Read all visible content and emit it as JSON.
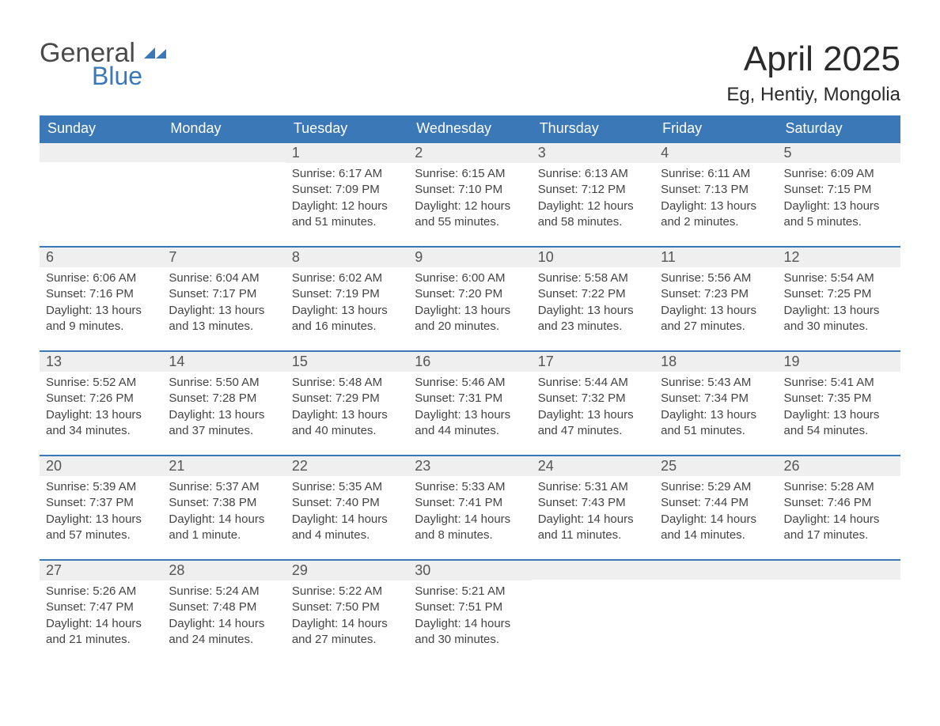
{
  "logo": {
    "general": "General",
    "blue": "Blue",
    "icon_color": "#3b78b8"
  },
  "title": "April 2025",
  "location": "Eg, Hentiy, Mongolia",
  "colors": {
    "header_bg": "#3b78b8",
    "header_text": "#ffffff",
    "daynum_bg": "#efefef",
    "border": "#3b78b8",
    "body_text": "#444444"
  },
  "day_names": [
    "Sunday",
    "Monday",
    "Tuesday",
    "Wednesday",
    "Thursday",
    "Friday",
    "Saturday"
  ],
  "weeks": [
    [
      null,
      null,
      {
        "n": "1",
        "sr": "6:17 AM",
        "ss": "7:09 PM",
        "dl": "12 hours and 51 minutes."
      },
      {
        "n": "2",
        "sr": "6:15 AM",
        "ss": "7:10 PM",
        "dl": "12 hours and 55 minutes."
      },
      {
        "n": "3",
        "sr": "6:13 AM",
        "ss": "7:12 PM",
        "dl": "12 hours and 58 minutes."
      },
      {
        "n": "4",
        "sr": "6:11 AM",
        "ss": "7:13 PM",
        "dl": "13 hours and 2 minutes."
      },
      {
        "n": "5",
        "sr": "6:09 AM",
        "ss": "7:15 PM",
        "dl": "13 hours and 5 minutes."
      }
    ],
    [
      {
        "n": "6",
        "sr": "6:06 AM",
        "ss": "7:16 PM",
        "dl": "13 hours and 9 minutes."
      },
      {
        "n": "7",
        "sr": "6:04 AM",
        "ss": "7:17 PM",
        "dl": "13 hours and 13 minutes."
      },
      {
        "n": "8",
        "sr": "6:02 AM",
        "ss": "7:19 PM",
        "dl": "13 hours and 16 minutes."
      },
      {
        "n": "9",
        "sr": "6:00 AM",
        "ss": "7:20 PM",
        "dl": "13 hours and 20 minutes."
      },
      {
        "n": "10",
        "sr": "5:58 AM",
        "ss": "7:22 PM",
        "dl": "13 hours and 23 minutes."
      },
      {
        "n": "11",
        "sr": "5:56 AM",
        "ss": "7:23 PM",
        "dl": "13 hours and 27 minutes."
      },
      {
        "n": "12",
        "sr": "5:54 AM",
        "ss": "7:25 PM",
        "dl": "13 hours and 30 minutes."
      }
    ],
    [
      {
        "n": "13",
        "sr": "5:52 AM",
        "ss": "7:26 PM",
        "dl": "13 hours and 34 minutes."
      },
      {
        "n": "14",
        "sr": "5:50 AM",
        "ss": "7:28 PM",
        "dl": "13 hours and 37 minutes."
      },
      {
        "n": "15",
        "sr": "5:48 AM",
        "ss": "7:29 PM",
        "dl": "13 hours and 40 minutes."
      },
      {
        "n": "16",
        "sr": "5:46 AM",
        "ss": "7:31 PM",
        "dl": "13 hours and 44 minutes."
      },
      {
        "n": "17",
        "sr": "5:44 AM",
        "ss": "7:32 PM",
        "dl": "13 hours and 47 minutes."
      },
      {
        "n": "18",
        "sr": "5:43 AM",
        "ss": "7:34 PM",
        "dl": "13 hours and 51 minutes."
      },
      {
        "n": "19",
        "sr": "5:41 AM",
        "ss": "7:35 PM",
        "dl": "13 hours and 54 minutes."
      }
    ],
    [
      {
        "n": "20",
        "sr": "5:39 AM",
        "ss": "7:37 PM",
        "dl": "13 hours and 57 minutes."
      },
      {
        "n": "21",
        "sr": "5:37 AM",
        "ss": "7:38 PM",
        "dl": "14 hours and 1 minute."
      },
      {
        "n": "22",
        "sr": "5:35 AM",
        "ss": "7:40 PM",
        "dl": "14 hours and 4 minutes."
      },
      {
        "n": "23",
        "sr": "5:33 AM",
        "ss": "7:41 PM",
        "dl": "14 hours and 8 minutes."
      },
      {
        "n": "24",
        "sr": "5:31 AM",
        "ss": "7:43 PM",
        "dl": "14 hours and 11 minutes."
      },
      {
        "n": "25",
        "sr": "5:29 AM",
        "ss": "7:44 PM",
        "dl": "14 hours and 14 minutes."
      },
      {
        "n": "26",
        "sr": "5:28 AM",
        "ss": "7:46 PM",
        "dl": "14 hours and 17 minutes."
      }
    ],
    [
      {
        "n": "27",
        "sr": "5:26 AM",
        "ss": "7:47 PM",
        "dl": "14 hours and 21 minutes."
      },
      {
        "n": "28",
        "sr": "5:24 AM",
        "ss": "7:48 PM",
        "dl": "14 hours and 24 minutes."
      },
      {
        "n": "29",
        "sr": "5:22 AM",
        "ss": "7:50 PM",
        "dl": "14 hours and 27 minutes."
      },
      {
        "n": "30",
        "sr": "5:21 AM",
        "ss": "7:51 PM",
        "dl": "14 hours and 30 minutes."
      },
      null,
      null,
      null
    ]
  ],
  "labels": {
    "sunrise": "Sunrise: ",
    "sunset": "Sunset: ",
    "daylight": "Daylight: "
  }
}
